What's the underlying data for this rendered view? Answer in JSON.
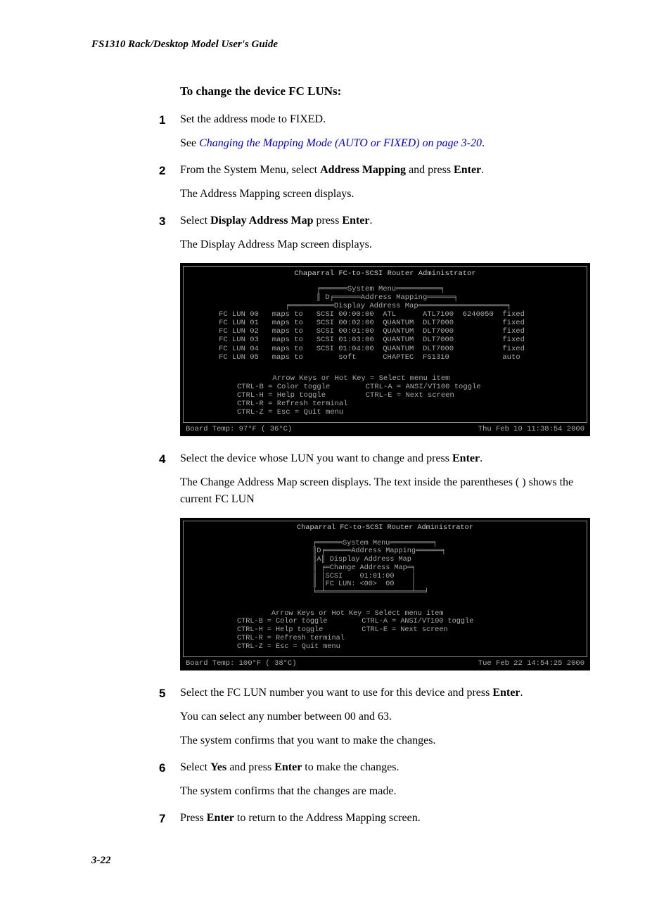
{
  "running_head": "FS1310 Rack/Desktop Model User's Guide",
  "page_number": "3-22",
  "section_title": "To change the device FC LUNs:",
  "link": {
    "text": "Changing the Mapping Mode (AUTO or FIXED) on page 3-20"
  },
  "steps": {
    "s1a": "Set the address mode to FIXED.",
    "s1b_pre": "See ",
    "s1b_post": ".",
    "s2a_pre": "From the System Menu, select ",
    "s2a_b1": "Address Mapping",
    "s2a_mid": " and press ",
    "s2a_b2": "Enter",
    "s2a_post": ".",
    "s2b": "The Address Mapping screen displays.",
    "s3a_pre": "Select ",
    "s3a_b1": "Display Address Map",
    "s3a_mid": " press ",
    "s3a_b2": "Enter",
    "s3a_post": ".",
    "s3b": "The Display Address Map screen displays.",
    "s4a_pre": "Select the device whose LUN you want to change and press ",
    "s4a_b1": "Enter",
    "s4a_post": ".",
    "s4b": "The Change Address Map screen displays. The text inside the parentheses ( ) shows the current FC LUN",
    "s5a_pre": "Select the FC LUN number you want to use for this device and press ",
    "s5a_b1": "Enter",
    "s5a_post": ".",
    "s5b": "You can select any number between 00 and 63.",
    "s5c": "The system confirms that you want to make the changes.",
    "s6_pre": "Select ",
    "s6_b1": "Yes",
    "s6_mid": " and press ",
    "s6_b2": "Enter",
    "s6_post": " to make the changes.",
    "s6b": "The system confirms that the changes are made.",
    "s7_pre": "Press ",
    "s7_b1": "Enter",
    "s7_post": " to return to the Address Mapping screen."
  },
  "terminal1": {
    "title": "Chaparral FC-to-SCSI Router Administrator",
    "menu": "                             ╒══════System Menu══════════╕\n                             ║ D╒══════Address Mapping══════╕\n                      ╒══════════Display Address Map════════════════════╕\n       FC LUN 00   maps to   SCSI 00:00:00  ATL      ATL7100  6240050  fixed\n       FC LUN 01   maps to   SCSI 00:02:00  QUANTUM  DLT7000           fixed\n       FC LUN 02   maps to   SCSI 00:01:00  QUANTUM  DLT7000           fixed\n       FC LUN 03   maps to   SCSI 01:03:00  QUANTUM  DLT7000           fixed\n       FC LUN 04   maps to   SCSI 01:04:00  QUANTUM  DLT7000           fixed\n       FC LUN 05   maps to        soft      CHAPTEC  FS1310            auto",
    "help": "        Arrow Keys or Hot Key = Select menu item\nCTRL-B = Color toggle        CTRL-A = ANSI/VT100 toggle\nCTRL-H = Help toggle         CTRL-E = Next screen\nCTRL-R = Refresh terminal\nCTRL-Z = Esc = Quit menu",
    "status_left": "Board Temp:  97°F ( 36°C)",
    "status_right": "Thu Feb 10 11:38:54 2000"
  },
  "terminal2": {
    "title": "Chaparral FC-to-SCSI Router Administrator",
    "menu": "                             ╒══════System Menu══════════╕\n                             ║D╒══════Address Mapping══════╕\n                             ║A║ Display Address Map\n                             ║ ╒═Change Address Map═╕\n                             ║ │SCSI    01:01:00    │\n                             ║ │FC LUN: <00>  00    │\n                             ╘═╧════════════════════╧══╛",
    "help": "        Arrow Keys or Hot Key = Select menu item\nCTRL-B = Color toggle        CTRL-A = ANSI/VT100 toggle\nCTRL-H = Help toggle         CTRL-E = Next screen\nCTRL-R = Refresh terminal\nCTRL-Z = Esc = Quit menu",
    "status_left": "Board Temp: 100°F ( 38°C)",
    "status_right": "Tue Feb 22 14:54:25 2000"
  }
}
